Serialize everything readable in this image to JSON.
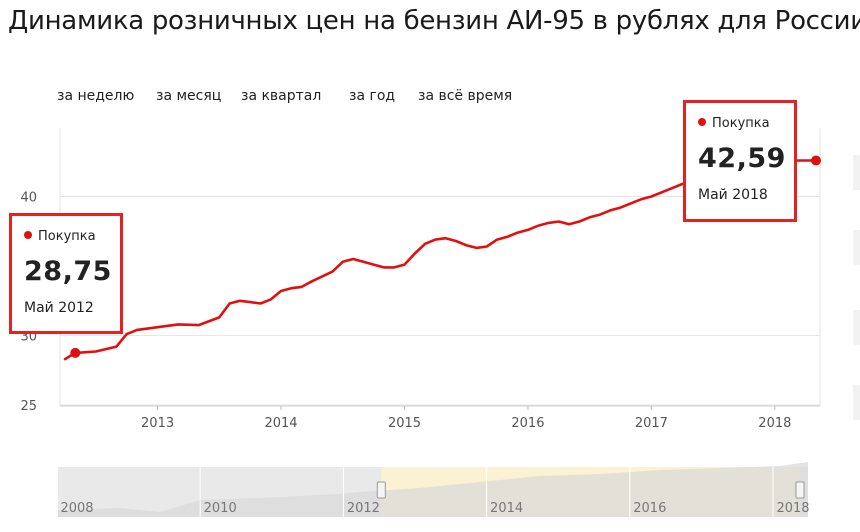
{
  "title": "Динамика розничных цен на бензин АИ-95 в рублях для России",
  "period_tabs": [
    "за неделю",
    "за месяц",
    "за квартал",
    "за год",
    "за всё время"
  ],
  "colors": {
    "series": "#e01010",
    "callout_border": "#e52222",
    "navigator_selected": "#fbf2d4",
    "navigator_unselected": "#e9e9e9"
  },
  "callouts": [
    {
      "series_label": "Покупка",
      "value": "28,75",
      "date": "Май 2012"
    },
    {
      "series_label": "Покупка",
      "value": "42,59",
      "date": "Май 2018"
    }
  ],
  "chart_data": {
    "type": "line",
    "title": "",
    "xlabel": "",
    "ylabel": "",
    "y_ticks": [
      "25",
      "30",
      "40"
    ],
    "x_ticks": [
      "2013",
      "2014",
      "2015",
      "2016",
      "2017",
      "2018"
    ],
    "xlim": [
      "2012-04",
      "2018-05"
    ],
    "grid": true,
    "series": [
      {
        "name": "Покупка",
        "x": [
          "2012-04",
          "2012-05",
          "2012-07",
          "2012-09",
          "2012-10",
          "2012-11",
          "2013-01",
          "2013-03",
          "2013-05",
          "2013-07",
          "2013-08",
          "2013-09",
          "2013-10",
          "2013-11",
          "2013-12",
          "2014-01",
          "2014-02",
          "2014-03",
          "2014-04",
          "2014-06",
          "2014-07",
          "2014-08",
          "2014-09",
          "2014-10",
          "2014-11",
          "2014-12",
          "2015-01",
          "2015-02",
          "2015-03",
          "2015-04",
          "2015-05",
          "2015-06",
          "2015-07",
          "2015-08",
          "2015-09",
          "2015-10",
          "2015-11",
          "2015-12",
          "2016-01",
          "2016-02",
          "2016-03",
          "2016-04",
          "2016-05",
          "2016-06",
          "2016-07",
          "2016-08",
          "2016-09",
          "2016-10",
          "2016-11",
          "2016-12",
          "2017-01",
          "2017-02",
          "2017-03",
          "2017-04",
          "2017-05",
          "2017-06",
          "2017-07",
          "2017-08",
          "2017-09",
          "2017-10",
          "2017-11",
          "2017-12",
          "2018-01",
          "2018-02",
          "2018-03",
          "2018-04",
          "2018-05"
        ],
        "values": [
          28.3,
          28.75,
          28.85,
          29.2,
          30.1,
          30.4,
          30.6,
          30.8,
          30.75,
          31.3,
          32.3,
          32.5,
          32.4,
          32.3,
          32.6,
          33.2,
          33.4,
          33.5,
          33.9,
          34.6,
          35.3,
          35.5,
          35.3,
          35.1,
          34.9,
          34.9,
          35.1,
          35.9,
          36.6,
          36.9,
          37.0,
          36.8,
          36.5,
          36.3,
          36.4,
          36.9,
          37.1,
          37.4,
          37.6,
          37.9,
          38.1,
          38.2,
          38.0,
          38.2,
          38.5,
          38.7,
          39.0,
          39.2,
          39.5,
          39.8,
          40.0,
          40.3,
          40.6,
          40.9,
          41.1,
          41.2,
          41.0,
          41.3,
          41.6,
          41.8,
          42.0,
          42.1,
          42.3,
          42.5,
          42.59,
          42.59,
          42.59
        ]
      }
    ],
    "navigator": {
      "x_ticks": [
        "2008",
        "2010",
        "2012",
        "2014",
        "2016",
        "2018"
      ],
      "selected_range": [
        "2012-04",
        "2018-05"
      ]
    }
  }
}
